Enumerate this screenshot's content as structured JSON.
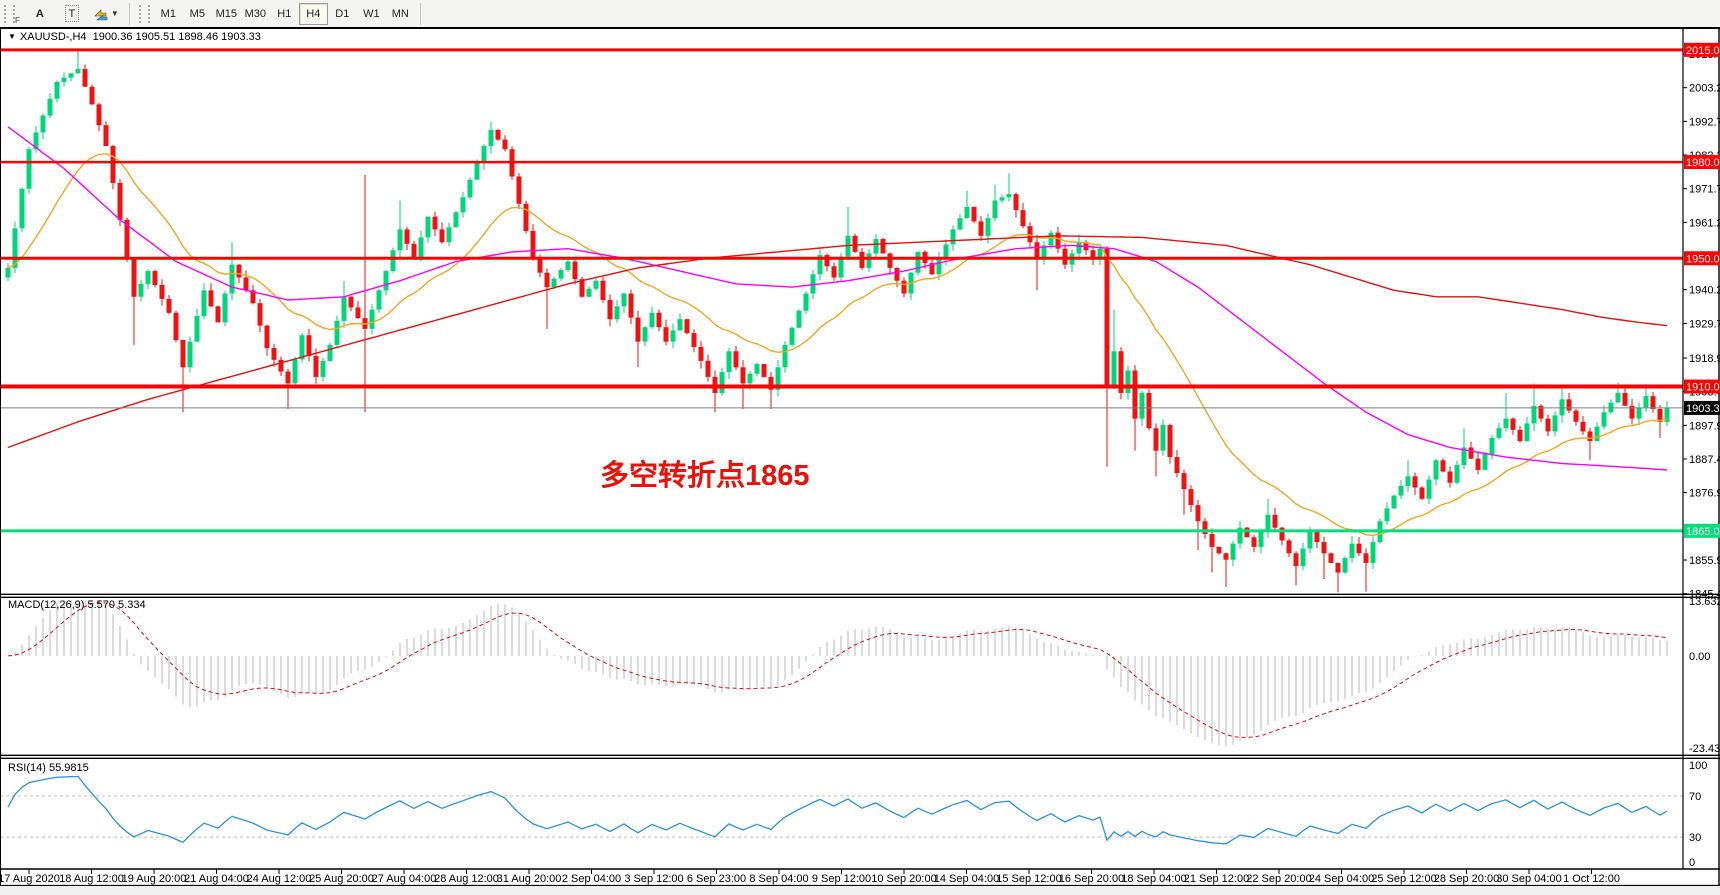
{
  "toolbar": {
    "grip_label": "F",
    "icons": [
      {
        "name": "label-a-icon",
        "glyph": "A"
      },
      {
        "name": "text-tool-icon",
        "glyph": "T"
      },
      {
        "name": "arrow-tools-icon",
        "glyph": "arrows"
      }
    ],
    "timeframes": [
      {
        "label": "M1",
        "active": false
      },
      {
        "label": "M5",
        "active": false
      },
      {
        "label": "M15",
        "active": false
      },
      {
        "label": "M30",
        "active": false
      },
      {
        "label": "H1",
        "active": false
      },
      {
        "label": "H4",
        "active": true
      },
      {
        "label": "D1",
        "active": false
      },
      {
        "label": "W1",
        "active": false
      },
      {
        "label": "MN",
        "active": false
      }
    ]
  },
  "header": {
    "symbol": "XAUUSD-,H4",
    "ohlc": "1900.36 1905.51 1898.46 1903.33"
  },
  "annotation": {
    "text": "多空转折点1865",
    "color": "#e8120a"
  },
  "price_axis": {
    "ticks": [
      "2013.70",
      "2003.20",
      "1992.70",
      "1982.20",
      "1971.70",
      "1961.20",
      "1940.20",
      "1929.70",
      "1918.90",
      "1908.40",
      "1897.90",
      "1887.40",
      "1876.90",
      "1855.90",
      "1845.40"
    ],
    "tick_values": [
      2013.7,
      2003.2,
      1992.7,
      1982.2,
      1971.7,
      1961.2,
      1940.2,
      1929.7,
      1918.9,
      1908.4,
      1897.9,
      1887.4,
      1876.9,
      1855.9,
      1845.4
    ],
    "current_price_label": "1903.33",
    "current_price": 1903.33
  },
  "levels": [
    {
      "label": "2015.00",
      "price": 2015.0,
      "color": "#ff0000",
      "width": 3
    },
    {
      "label": "1980.00",
      "price": 1980.0,
      "color": "#ff0000",
      "width": 2.5
    },
    {
      "label": "1950.00",
      "price": 1950.0,
      "color": "#ff0000",
      "width": 3
    },
    {
      "label": "1910.00",
      "price": 1910.0,
      "color": "#ff0000",
      "width": 4
    },
    {
      "label": "1865.00",
      "price": 1865.0,
      "color": "#00df7a",
      "width": 3
    }
  ],
  "time_axis": {
    "labels": [
      "17 Aug 2020",
      "18 Aug 12:00",
      "19 Aug 20:00",
      "21 Aug 04:00",
      "24 Aug 12:00",
      "25 Aug 20:00",
      "27 Aug 04:00",
      "28 Aug 12:00",
      "31 Aug 20:00",
      "2 Sep 04:00",
      "3 Sep 12:00",
      "6 Sep 23:00",
      "8 Sep 04:00",
      "9 Sep 12:00",
      "10 Sep 20:00",
      "14 Sep 04:00",
      "15 Sep 12:00",
      "16 Sep 20:00",
      "18 Sep 04:00",
      "21 Sep 12:00",
      "22 Sep 20:00",
      "24 Sep 04:00",
      "25 Sep 12:00",
      "28 Sep 20:00",
      "30 Sep 04:00",
      "1 Oct 12:00"
    ]
  },
  "macd_panel": {
    "label": "MACD(12,26,9) 5.570 5.334",
    "axis_labels": [
      "13.632",
      "0.00",
      "-23.435"
    ],
    "scale_max": 13.632,
    "scale_min": -23.435,
    "histogram_color": "#c4c4c4",
    "signal_color": "#e01212"
  },
  "rsi_panel": {
    "label": "RSI(14) 55.9815",
    "axis_labels": [
      "100",
      "70",
      "30",
      "0"
    ],
    "levels": [
      70,
      30
    ],
    "line_color": "#2e93d9"
  },
  "chart_data": {
    "type": "candlestick",
    "symbol": "XAUUSD",
    "timeframe": "H4",
    "bars": 238,
    "up_color": "#00d57a",
    "down_color": "#ef1212",
    "price_range_visible": [
      1845.4,
      2015.5
    ],
    "candle_pivots": [
      [
        0,
        1947,
        null,
        null
      ],
      [
        3,
        1984,
        null,
        null
      ],
      [
        7,
        2005,
        null,
        null
      ],
      [
        10,
        2009,
        2015.5,
        null
      ],
      [
        12,
        1998,
        null,
        null
      ],
      [
        14,
        1985,
        null,
        null
      ],
      [
        16,
        1962,
        null,
        null
      ],
      [
        18,
        1938,
        null,
        1923
      ],
      [
        20,
        1946,
        null,
        null
      ],
      [
        23,
        1933,
        null,
        null
      ],
      [
        25,
        1916,
        null,
        1902
      ],
      [
        28,
        1940,
        null,
        null
      ],
      [
        30,
        1930,
        null,
        null
      ],
      [
        32,
        1948,
        1955,
        null
      ],
      [
        35,
        1936,
        null,
        null
      ],
      [
        37,
        1922,
        null,
        null
      ],
      [
        40,
        1911,
        null,
        1903
      ],
      [
        42,
        1926,
        null,
        null
      ],
      [
        44,
        1913,
        null,
        null
      ],
      [
        46,
        1923,
        null,
        null
      ],
      [
        48,
        1938,
        1943,
        null
      ],
      [
        51,
        1928,
        1976,
        1902
      ],
      [
        54,
        1946,
        null,
        null
      ],
      [
        56,
        1959,
        1968,
        null
      ],
      [
        58,
        1950,
        null,
        null
      ],
      [
        60,
        1963,
        null,
        null
      ],
      [
        62,
        1955,
        null,
        null
      ],
      [
        65,
        1969,
        null,
        null
      ],
      [
        67,
        1980,
        null,
        null
      ],
      [
        69,
        1990,
        1992.6,
        null
      ],
      [
        71,
        1984,
        null,
        null
      ],
      [
        73,
        1967,
        null,
        null
      ],
      [
        75,
        1950,
        null,
        null
      ],
      [
        77,
        1941,
        null,
        1928
      ],
      [
        80,
        1949,
        null,
        null
      ],
      [
        82,
        1938,
        null,
        null
      ],
      [
        84,
        1943,
        null,
        null
      ],
      [
        86,
        1931,
        null,
        null
      ],
      [
        88,
        1939,
        null,
        null
      ],
      [
        90,
        1924,
        null,
        1916
      ],
      [
        92,
        1933,
        null,
        null
      ],
      [
        94,
        1924,
        null,
        null
      ],
      [
        96,
        1931,
        null,
        null
      ],
      [
        99,
        1918,
        null,
        null
      ],
      [
        101,
        1908,
        null,
        1902
      ],
      [
        103,
        1921,
        null,
        null
      ],
      [
        105,
        1911,
        null,
        1903
      ],
      [
        107,
        1917,
        null,
        null
      ],
      [
        109,
        1909,
        null,
        1903
      ],
      [
        111,
        1923,
        null,
        null
      ],
      [
        114,
        1939,
        null,
        null
      ],
      [
        116,
        1951,
        null,
        null
      ],
      [
        118,
        1944,
        null,
        null
      ],
      [
        120,
        1957,
        1966,
        null
      ],
      [
        122,
        1947,
        null,
        null
      ],
      [
        124,
        1956,
        null,
        null
      ],
      [
        126,
        1947,
        null,
        null
      ],
      [
        128,
        1939,
        null,
        null
      ],
      [
        130,
        1952,
        null,
        null
      ],
      [
        132,
        1945,
        null,
        null
      ],
      [
        135,
        1959,
        null,
        null
      ],
      [
        137,
        1966,
        1971,
        null
      ],
      [
        139,
        1957,
        null,
        null
      ],
      [
        141,
        1968,
        1973,
        null
      ],
      [
        143,
        1970,
        1976.5,
        null
      ],
      [
        145,
        1960,
        null,
        null
      ],
      [
        147,
        1950,
        null,
        1940
      ],
      [
        149,
        1958,
        null,
        null
      ],
      [
        151,
        1948,
        null,
        null
      ],
      [
        153,
        1955,
        null,
        null
      ],
      [
        155,
        1950,
        null,
        null
      ],
      [
        156,
        1953,
        null,
        null
      ],
      [
        157,
        1910,
        null,
        1885
      ],
      [
        158,
        1921,
        1934,
        null
      ],
      [
        159,
        1908,
        null,
        null
      ],
      [
        160,
        1915,
        null,
        null
      ],
      [
        161,
        1900,
        null,
        1890
      ],
      [
        162,
        1908,
        null,
        null
      ],
      [
        163,
        1897,
        null,
        null
      ],
      [
        164,
        1890,
        null,
        1882
      ],
      [
        165,
        1898,
        null,
        null
      ],
      [
        166,
        1888,
        null,
        null
      ],
      [
        168,
        1878,
        null,
        1870
      ],
      [
        170,
        1868,
        null,
        1859
      ],
      [
        172,
        1860,
        null,
        1852
      ],
      [
        174,
        1856,
        null,
        1847.5
      ],
      [
        176,
        1866,
        null,
        null
      ],
      [
        178,
        1860,
        null,
        null
      ],
      [
        180,
        1870,
        1875,
        null
      ],
      [
        182,
        1862,
        null,
        null
      ],
      [
        184,
        1854,
        null,
        1848
      ],
      [
        186,
        1865,
        null,
        null
      ],
      [
        188,
        1858,
        null,
        1850
      ],
      [
        190,
        1852,
        null,
        1845.8
      ],
      [
        192,
        1861,
        null,
        null
      ],
      [
        194,
        1855,
        null,
        1846
      ],
      [
        196,
        1868,
        null,
        null
      ],
      [
        198,
        1876,
        null,
        null
      ],
      [
        200,
        1882,
        1887,
        null
      ],
      [
        202,
        1875,
        null,
        null
      ],
      [
        204,
        1887,
        null,
        null
      ],
      [
        206,
        1880,
        null,
        null
      ],
      [
        208,
        1891,
        1897,
        null
      ],
      [
        210,
        1884,
        null,
        null
      ],
      [
        212,
        1894,
        null,
        null
      ],
      [
        214,
        1900,
        1908,
        null
      ],
      [
        216,
        1893,
        null,
        null
      ],
      [
        218,
        1904,
        1911,
        null
      ],
      [
        220,
        1896,
        null,
        null
      ],
      [
        222,
        1906,
        1910.5,
        null
      ],
      [
        224,
        1899,
        null,
        null
      ],
      [
        226,
        1893,
        null,
        1887
      ],
      [
        228,
        1902,
        null,
        null
      ],
      [
        230,
        1908,
        1911.3,
        null
      ],
      [
        232,
        1900,
        null,
        null
      ],
      [
        234,
        1907,
        1910.8,
        null
      ],
      [
        236,
        1899,
        null,
        1894
      ],
      [
        237,
        1903.33,
        1905.51,
        1898.46
      ]
    ],
    "moving_averages": {
      "orange": {
        "color": "#f5a623",
        "type": "ema",
        "period": 21
      },
      "magenta": {
        "color": "#ff00ff",
        "anchors": [
          [
            0,
            1991
          ],
          [
            8,
            1978
          ],
          [
            16,
            1962
          ],
          [
            24,
            1949
          ],
          [
            32,
            1941
          ],
          [
            40,
            1937
          ],
          [
            48,
            1938
          ],
          [
            56,
            1943
          ],
          [
            64,
            1949
          ],
          [
            72,
            1952
          ],
          [
            80,
            1953
          ],
          [
            88,
            1950
          ],
          [
            96,
            1946
          ],
          [
            104,
            1942
          ],
          [
            112,
            1941
          ],
          [
            120,
            1943
          ],
          [
            128,
            1946
          ],
          [
            136,
            1950
          ],
          [
            144,
            1953
          ],
          [
            152,
            1954
          ],
          [
            158,
            1953
          ],
          [
            164,
            1949
          ],
          [
            170,
            1941
          ],
          [
            176,
            1931
          ],
          [
            182,
            1921
          ],
          [
            188,
            1911
          ],
          [
            194,
            1902
          ],
          [
            200,
            1895
          ],
          [
            206,
            1891
          ],
          [
            214,
            1888
          ],
          [
            222,
            1886
          ],
          [
            230,
            1885
          ],
          [
            237,
            1884
          ]
        ]
      },
      "red": {
        "color": "#e01212",
        "anchors": [
          [
            0,
            1891
          ],
          [
            10,
            1899
          ],
          [
            20,
            1906
          ],
          [
            30,
            1912
          ],
          [
            40,
            1918
          ],
          [
            50,
            1924
          ],
          [
            60,
            1930
          ],
          [
            70,
            1936
          ],
          [
            80,
            1942
          ],
          [
            90,
            1947
          ],
          [
            100,
            1950
          ],
          [
            110,
            1952
          ],
          [
            120,
            1954
          ],
          [
            130,
            1955
          ],
          [
            140,
            1956
          ],
          [
            150,
            1957
          ],
          [
            162,
            1956.5
          ],
          [
            174,
            1954
          ],
          [
            186,
            1948
          ],
          [
            192,
            1944
          ],
          [
            198,
            1940
          ],
          [
            204,
            1938
          ],
          [
            210,
            1938
          ],
          [
            216,
            1936
          ],
          [
            222,
            1934
          ],
          [
            228,
            1931.5
          ],
          [
            233,
            1930
          ],
          [
            237,
            1929
          ]
        ]
      }
    },
    "indicators": {
      "macd": [
        12,
        26,
        9
      ],
      "rsi": 14
    }
  }
}
